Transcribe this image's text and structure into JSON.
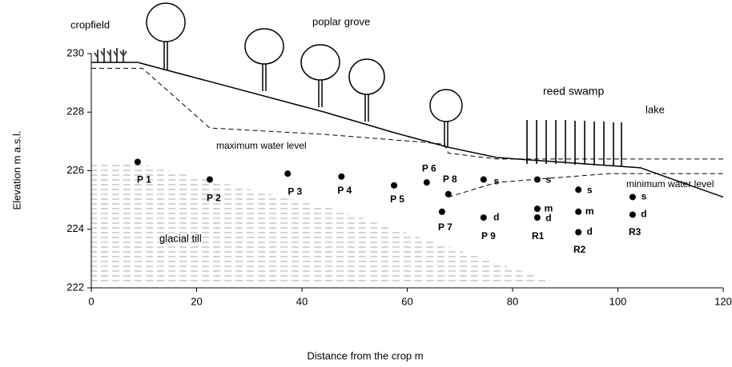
{
  "chart_data": {
    "type": "scatter",
    "xlabel": "Distance from the crop m",
    "ylabel": "Elevation m a.s.l.",
    "xlim": [
      0,
      120
    ],
    "ylim": [
      222,
      230
    ],
    "xticks": [
      0,
      20,
      40,
      60,
      80,
      100,
      120
    ],
    "yticks": [
      222,
      224,
      226,
      228,
      230
    ],
    "points": {
      "labels": [
        "P 1",
        "P 2",
        "P 3",
        "P 4",
        "P 5",
        "P 6",
        "P 8",
        "P 7",
        "s",
        "d",
        "s",
        "m",
        "d",
        "s",
        "m",
        "d",
        "s",
        "d"
      ],
      "x": [
        8.8,
        22.5,
        37.3,
        47.5,
        57.5,
        63.7,
        67.8,
        66.6,
        74.5,
        74.5,
        84.7,
        84.7,
        84.7,
        92.5,
        92.5,
        92.5,
        102.8,
        102.8
      ],
      "y": [
        226.3,
        225.7,
        225.9,
        225.8,
        225.5,
        225.6,
        225.2,
        224.6,
        225.7,
        224.4,
        225.7,
        224.7,
        224.4,
        225.35,
        224.6,
        223.9,
        225.1,
        224.5
      ],
      "color": "#000000"
    },
    "surface": {
      "x": [
        0,
        8.8,
        44.3,
        57.5,
        67.8,
        77,
        104.3,
        107.4,
        120
      ],
      "y": [
        229.7,
        229.7,
        228.0,
        227.3,
        226.8,
        226.45,
        226.1,
        225.9,
        225.1
      ],
      "dashed": false
    },
    "max_water": {
      "label": "maximum water level",
      "x": [
        0,
        9.7,
        22.5,
        44.3,
        63.3,
        67.1,
        67.8,
        77,
        120
      ],
      "y": [
        229.5,
        229.5,
        227.46,
        227.24,
        226.97,
        226.9,
        226.6,
        226.4,
        226.4
      ],
      "dashed": true
    },
    "min_water": {
      "label": "minimum water level",
      "x": [
        67.8,
        77,
        98.2,
        120
      ],
      "y": [
        225.1,
        225.6,
        225.9,
        225.9
      ],
      "dashed": true
    },
    "annotations": [
      "cropfield",
      "poplar grove",
      "reed swamp",
      "lake",
      "glacial till",
      "P 9",
      "R1",
      "R2",
      "R3"
    ]
  }
}
